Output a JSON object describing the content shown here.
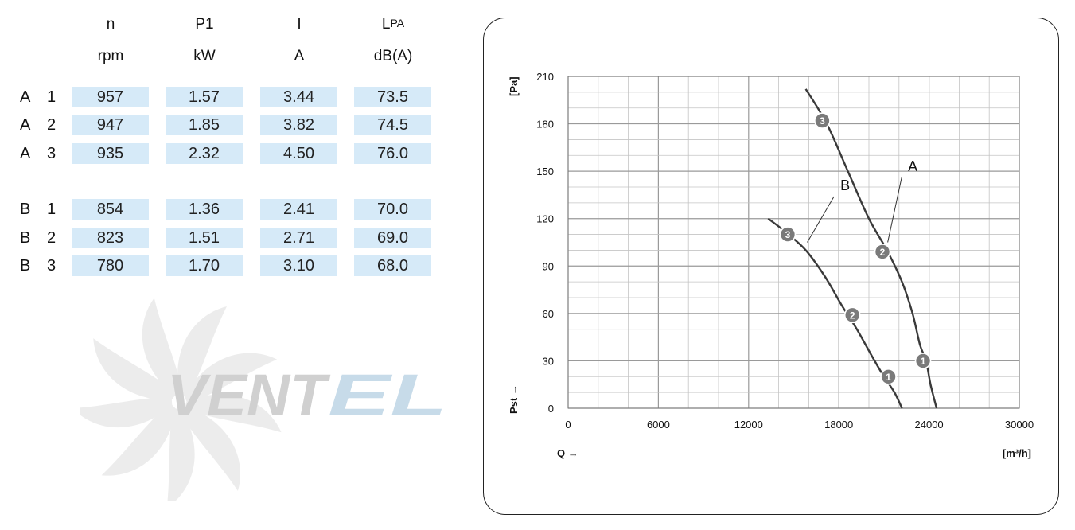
{
  "table": {
    "headers": [
      {
        "sym": "n",
        "unit": "rpm"
      },
      {
        "sym": "P1",
        "unit": "kW"
      },
      {
        "sym": "I",
        "unit": "A"
      },
      {
        "sym": "L",
        "sub": "PA",
        "unit": "dB(A)"
      }
    ],
    "rows": [
      {
        "series": "A",
        "step": "1",
        "n": "957",
        "p1": "1.57",
        "i": "3.44",
        "lpa": "73.5"
      },
      {
        "series": "A",
        "step": "2",
        "n": "947",
        "p1": "1.85",
        "i": "3.82",
        "lpa": "74.5"
      },
      {
        "series": "A",
        "step": "3",
        "n": "935",
        "p1": "2.32",
        "i": "4.50",
        "lpa": "76.0"
      },
      {
        "series": "B",
        "step": "1",
        "n": "854",
        "p1": "1.36",
        "i": "2.41",
        "lpa": "70.0"
      },
      {
        "series": "B",
        "step": "2",
        "n": "823",
        "p1": "1.51",
        "i": "2.71",
        "lpa": "69.0"
      },
      {
        "series": "B",
        "step": "3",
        "n": "780",
        "p1": "1.70",
        "i": "3.10",
        "lpa": "68.0"
      }
    ],
    "cell_color": "#d6eaf8"
  },
  "watermark": {
    "text": "VENTEL",
    "color_dark": "#cccccc",
    "color_light": "#c5d9e8"
  },
  "chart_data": {
    "type": "line",
    "xlabel": "Q →",
    "xunit": "[m³/h]",
    "ylabel": "Pst →",
    "yunit": "[Pa]",
    "xlim": [
      0,
      30000
    ],
    "ylim": [
      0,
      210
    ],
    "xticks": [
      0,
      6000,
      12000,
      18000,
      24000,
      30000
    ],
    "yticks": [
      0,
      30,
      60,
      90,
      120,
      150,
      180,
      210
    ],
    "grid": true,
    "series": [
      {
        "name": "A",
        "x": [
          15800,
          17200,
          18600,
          20000,
          21200,
          22200,
          22900,
          23400,
          23800,
          24100,
          24500
        ],
        "y": [
          202,
          180,
          150,
          120,
          100,
          80,
          60,
          40,
          30,
          15,
          0
        ],
        "markers": [
          {
            "label": "1",
            "x": 23600,
            "y": 30
          },
          {
            "label": "2",
            "x": 20900,
            "y": 99
          },
          {
            "label": "3",
            "x": 16900,
            "y": 182
          }
        ],
        "annotation": {
          "x": 22600,
          "y": 150
        }
      },
      {
        "name": "B",
        "x": [
          13300,
          14400,
          15800,
          17100,
          18200,
          19200,
          20200,
          21000,
          21700,
          22200
        ],
        "y": [
          120,
          112,
          100,
          83,
          65,
          50,
          33,
          20,
          10,
          0
        ],
        "markers": [
          {
            "label": "1",
            "x": 21300,
            "y": 20
          },
          {
            "label": "2",
            "x": 18900,
            "y": 59
          },
          {
            "label": "3",
            "x": 14600,
            "y": 110
          }
        ],
        "annotation": {
          "x": 18100,
          "y": 138
        }
      }
    ],
    "line_color": "#3a3a3a",
    "marker_color": "#7a7a7a"
  }
}
